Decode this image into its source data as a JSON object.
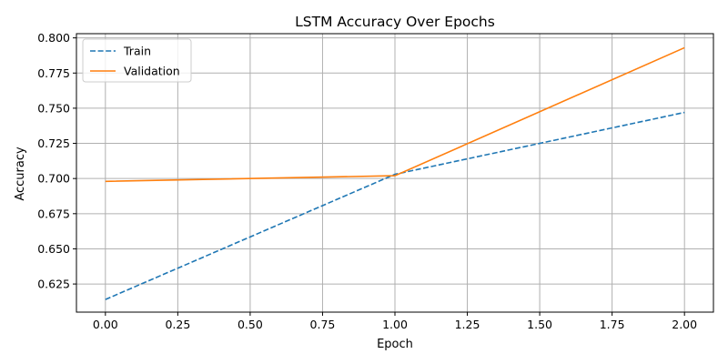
{
  "chart_data": {
    "type": "line",
    "title": "LSTM Accuracy Over Epochs",
    "xlabel": "Epoch",
    "ylabel": "Accuracy",
    "xlim": [
      -0.1,
      2.1
    ],
    "ylim": [
      0.605,
      0.803
    ],
    "xticks": [
      0.0,
      0.25,
      0.5,
      0.75,
      1.0,
      1.25,
      1.5,
      1.75,
      2.0
    ],
    "xtick_labels": [
      "0.00",
      "0.25",
      "0.50",
      "0.75",
      "1.00",
      "1.25",
      "1.50",
      "1.75",
      "2.00"
    ],
    "yticks": [
      0.625,
      0.65,
      0.675,
      0.7,
      0.725,
      0.75,
      0.775,
      0.8
    ],
    "ytick_labels": [
      "0.625",
      "0.650",
      "0.675",
      "0.700",
      "0.725",
      "0.750",
      "0.775",
      "0.800"
    ],
    "grid": true,
    "legend_position": "top-left",
    "x": [
      0,
      1,
      2
    ],
    "series": [
      {
        "name": "Train",
        "values": [
          0.614,
          0.703,
          0.747
        ],
        "color": "#1f77b4",
        "style": "dashed"
      },
      {
        "name": "Validation",
        "values": [
          0.698,
          0.702,
          0.793
        ],
        "color": "#ff7f0e",
        "style": "solid"
      }
    ]
  }
}
